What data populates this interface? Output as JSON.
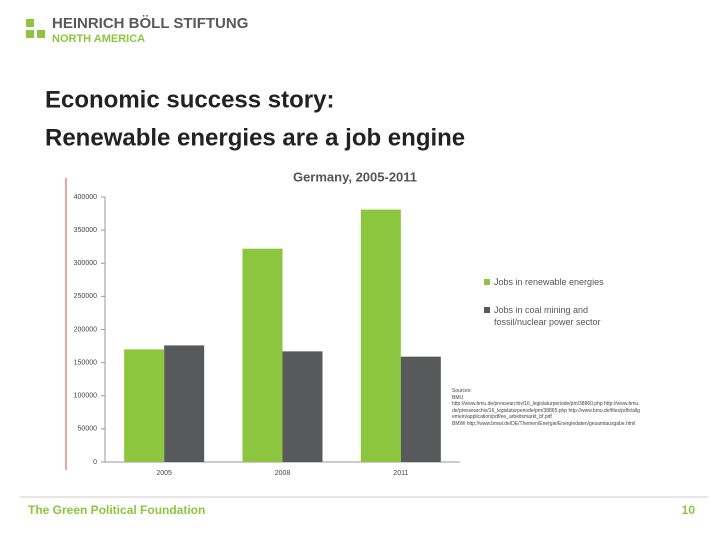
{
  "header": {
    "org": "HEINRICH BÖLL STIFTUNG",
    "region": "NORTH AMERICA"
  },
  "title": [
    "Economic success story:",
    "Renewable energies are a job engine"
  ],
  "chart_data": {
    "type": "bar",
    "title": "Germany, 2005-2011",
    "categories": [
      "2005",
      "2008",
      "2011"
    ],
    "series": [
      {
        "name": "Jobs in renewable energies",
        "color": "#8cc63f",
        "values": [
          170000,
          322000,
          381000
        ]
      },
      {
        "name": "Jobs in coal mining and fossil/nuclear power sector",
        "color": "#58595b",
        "values": [
          176000,
          167000,
          159000
        ]
      }
    ],
    "ylim": [
      0,
      400000
    ],
    "yticks": [
      0,
      50000,
      100000,
      150000,
      200000,
      250000,
      300000,
      350000,
      400000
    ],
    "legend": "right",
    "sources": [
      "Sources:",
      "BMU",
      "http://www.bmu.de/pressearchiv/16_legislaturperiode/pm/38860.php http://www.bmu.de/pressearchiv/16_legislaturperiode/pm/38865.php http://www.bmu.de/files/pdfs/allgemein/application/pdf/ee_arbeitsmarkt_bf.pdf",
      "BMWi http://www.bmwi.de/DE/Themen/Energie/Energiedaten/gesamtausgabe.html"
    ]
  },
  "footer": {
    "text": "The Green Political Foundation",
    "page": "10"
  }
}
